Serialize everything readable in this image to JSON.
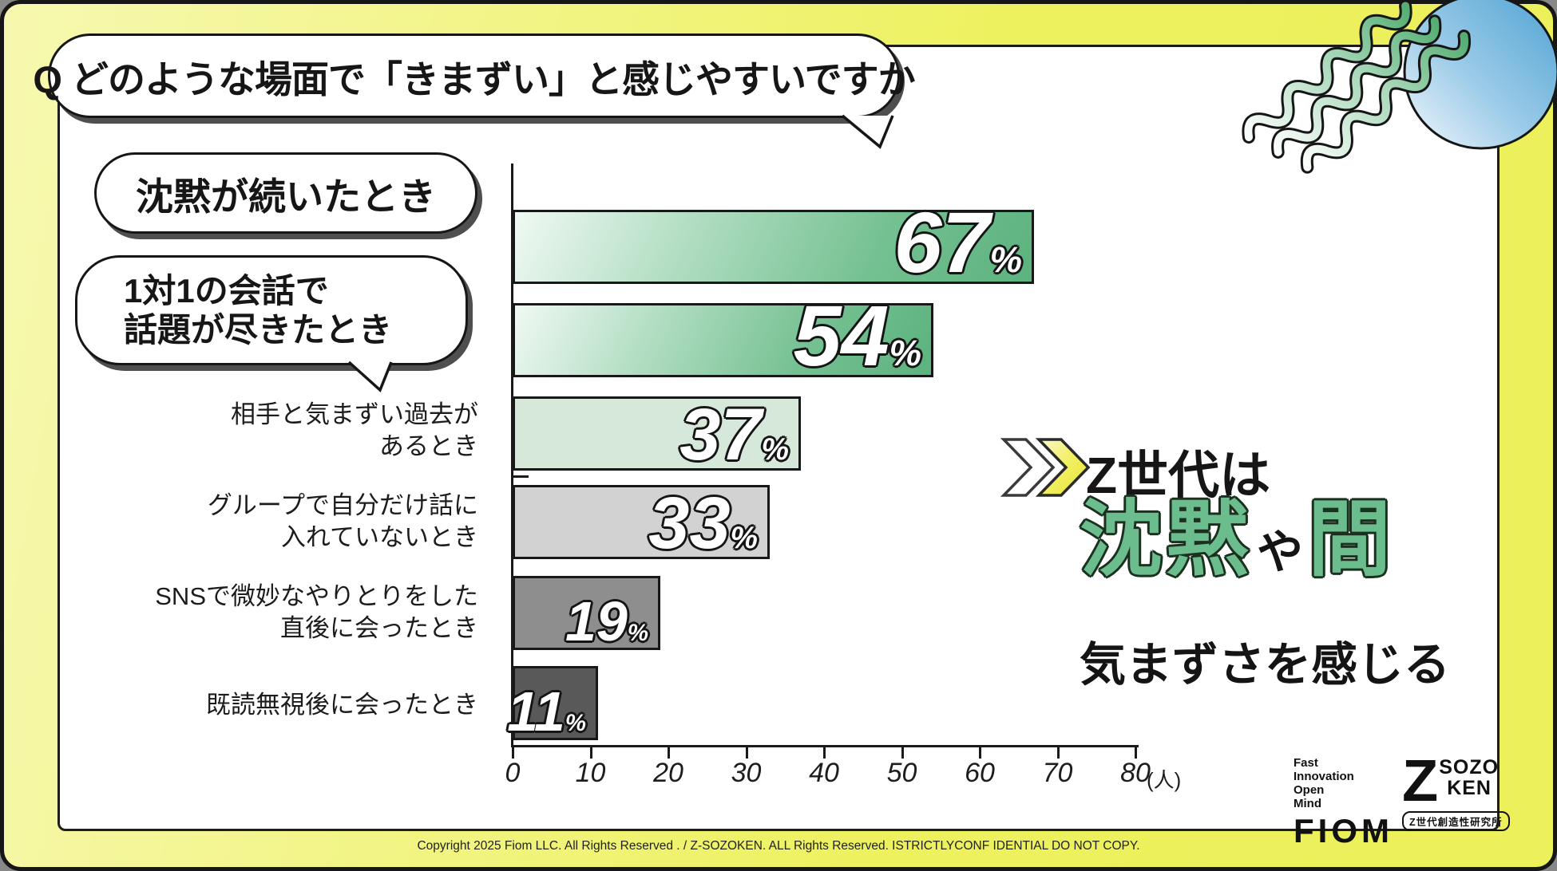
{
  "title": {
    "text": "Q どのような場面で「きまずい」と感じやすいですか"
  },
  "chart_data": {
    "type": "bar",
    "orientation": "horizontal",
    "title": "どのような場面で「きまずい」と感じやすいですか",
    "categories": [
      {
        "label": "沈黙が続いたとき",
        "emphasis": "speech-bubble",
        "lines": [
          "沈黙が続いたとき"
        ]
      },
      {
        "label": "1対1の会話で話題が尽きたとき",
        "emphasis": "speech-bubble",
        "lines": [
          "1対1の会話で",
          "話題が尽きたとき"
        ]
      },
      {
        "label": "相手と気まずい過去があるとき",
        "emphasis": "plain",
        "lines": [
          "相手と気まずい過去が",
          "あるとき"
        ]
      },
      {
        "label": "グループで自分だけ話に入れていないとき",
        "emphasis": "plain",
        "lines": [
          "グループで自分だけ話に",
          "入れていないとき"
        ]
      },
      {
        "label": "SNSで微妙なやりとりをした直後に会ったとき",
        "emphasis": "plain",
        "lines": [
          "SNSで微妙なやりとりをした",
          "直後に会ったとき"
        ]
      },
      {
        "label": "既読無視後に会ったとき",
        "emphasis": "plain",
        "lines": [
          "既読無視後に会ったとき"
        ]
      }
    ],
    "values": [
      67,
      54,
      37,
      33,
      19,
      11
    ],
    "value_suffix": "%",
    "xlim": [
      0,
      80
    ],
    "x_ticks": [
      "0",
      "10",
      "20",
      "30",
      "40",
      "50",
      "60",
      "70",
      "80"
    ],
    "x_unit": "(人)",
    "grid": false,
    "legend": false,
    "bar_styles": [
      "linear-gradient(115deg,#f0f9f3 0%,#aedcc0 35%,#74c091 70%,#5cb37e 100%)",
      "linear-gradient(115deg,#f0f9f3 0%,#aedcc0 35%,#74c091 70%,#5cb37e 100%)",
      "#d5e8da",
      "#d2d2d2",
      "#8e8e8e",
      "#595959"
    ],
    "value_label_color": "#ffffff"
  },
  "conclusion": {
    "line1": "Z世代は",
    "green1": "沈黙",
    "particle": "や",
    "green2": "間",
    "line3": "気まずさを感じる",
    "accent_green": "#6cbd8d"
  },
  "logos": {
    "fiom": {
      "tagline": [
        "Fast",
        "Innovation",
        "Open",
        "Mind"
      ],
      "name": "FIOM"
    },
    "sozoken": {
      "z": "Z",
      "word1": "SOZO",
      "word2": "KEN",
      "subtitle": "Z世代創造性研究所"
    }
  },
  "footer": {
    "copyright": "Copyright 2025 Fiom LLC. All Rights Reserved . / Z-SOZOKEN. ALL Rights Reserved. ISTRICTLYCONF IDENTIAL DO NOT COPY."
  },
  "colors": {
    "frame_yellow": "#edf15e",
    "chevron_yellow": "#efec44",
    "bar_green": "#5cb37e",
    "circle_blue": "#4fa3d4"
  }
}
